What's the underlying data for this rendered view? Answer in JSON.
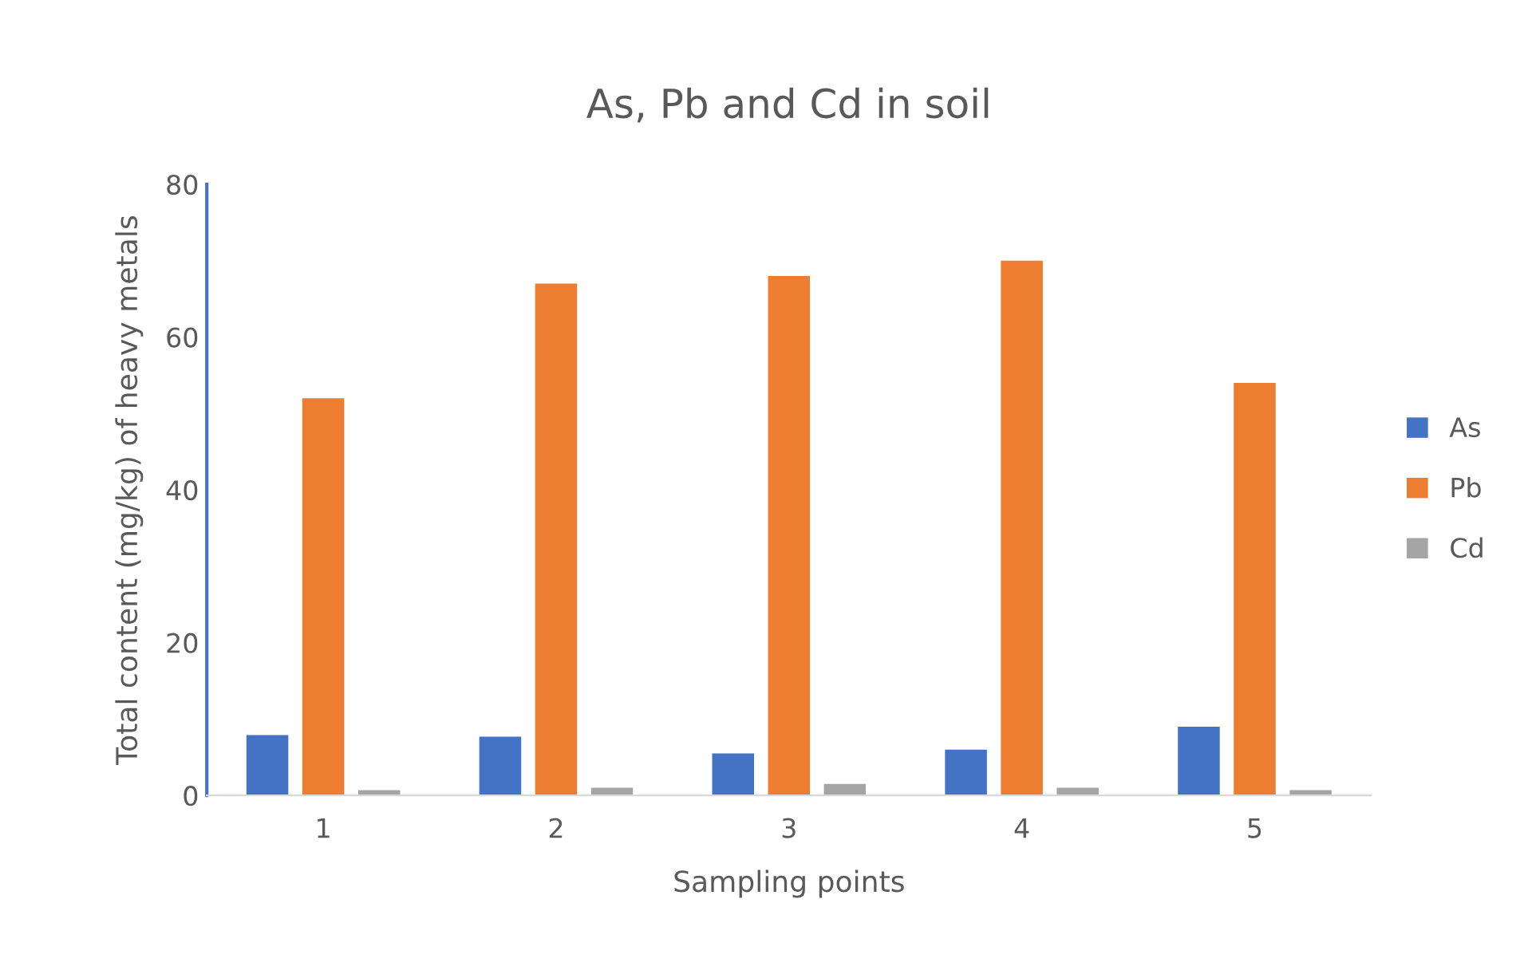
{
  "chart_data": {
    "type": "bar",
    "title": "As, Pb and Cd in soil",
    "xlabel": "Sampling points",
    "ylabel": "Total content (mg/kg) of heavy metals",
    "categories": [
      "1",
      "2",
      "3",
      "4",
      "5"
    ],
    "series": [
      {
        "name": "As",
        "color": "#4472c4",
        "values": [
          7.9,
          7.7,
          5.5,
          6.0,
          9.0
        ]
      },
      {
        "name": "Pb",
        "color": "#ed7d31",
        "values": [
          52,
          67,
          68,
          70,
          54
        ]
      },
      {
        "name": "Cd",
        "color": "#a5a5a5",
        "values": [
          0.7,
          1.0,
          1.5,
          1.0,
          0.7
        ]
      }
    ],
    "ylim": [
      0,
      80
    ],
    "yticks": [
      0,
      20,
      40,
      60,
      80
    ],
    "grid": false,
    "legend": "right"
  }
}
